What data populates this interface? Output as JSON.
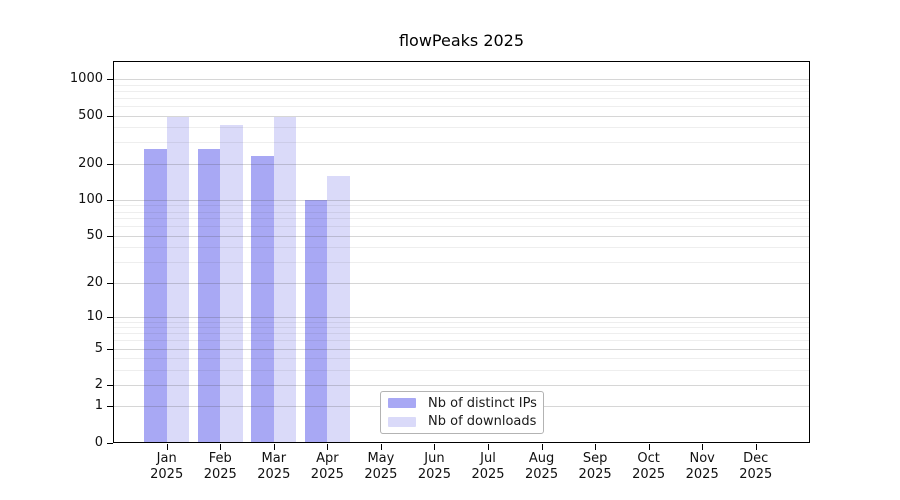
{
  "title": "flowPeaks 2025",
  "chart_data": {
    "type": "bar",
    "title": "flowPeaks 2025",
    "x_year_label": "2025",
    "categories": [
      "Jan",
      "Feb",
      "Mar",
      "Apr",
      "May",
      "Jun",
      "Jul",
      "Aug",
      "Sep",
      "Oct",
      "Nov",
      "Dec"
    ],
    "series": [
      {
        "name": "Nb of distinct IPs",
        "color": "#a8a8f4",
        "values": [
          262,
          262,
          233,
          100,
          null,
          null,
          null,
          null,
          null,
          null,
          null,
          null
        ]
      },
      {
        "name": "Nb of downloads",
        "color": "#dadaf9",
        "values": [
          486,
          417,
          486,
          158,
          null,
          null,
          null,
          null,
          null,
          null,
          null,
          null
        ]
      }
    ],
    "y_ticks": [
      0,
      1,
      2,
      5,
      10,
      20,
      50,
      100,
      200,
      500,
      1000
    ],
    "y_minor_ticks": [
      3,
      4,
      6,
      7,
      8,
      9,
      30,
      40,
      60,
      70,
      80,
      90,
      300,
      400,
      600,
      700,
      800,
      900
    ],
    "y_scale": "log10(1+x)",
    "ylim": [
      0,
      1380
    ],
    "xlabel": "",
    "ylabel": "",
    "grid": "horizontal-major-and-minor",
    "legend_position": "inside-bottom-center",
    "colors": {
      "axis": "#000000",
      "grid_major": "#d6d6d6",
      "grid_minor": "#ededed",
      "text": "#111111",
      "background": "#ffffff",
      "legend_border": "#b3b3b3"
    }
  }
}
